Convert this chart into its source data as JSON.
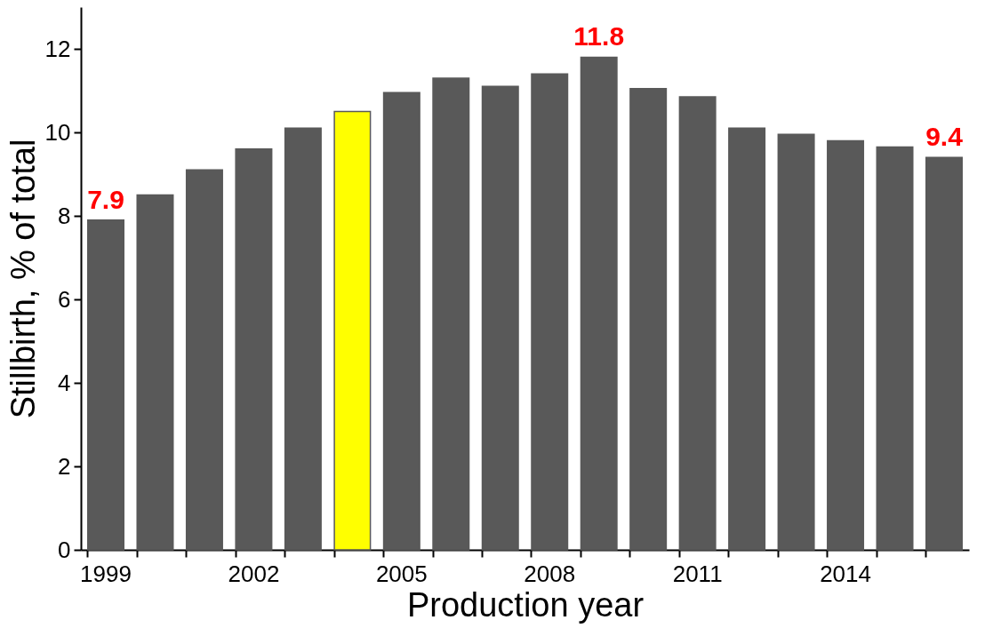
{
  "chart_data": {
    "type": "bar",
    "xlabel": "Production year",
    "ylabel": "Stillbirth, % of total",
    "categories": [
      "1999",
      null,
      null,
      "2002",
      null,
      null,
      "2005",
      null,
      null,
      "2008",
      null,
      null,
      "2011",
      null,
      null,
      "2014",
      null,
      null
    ],
    "values": [
      7.9,
      8.5,
      9.1,
      9.6,
      10.1,
      10.5,
      10.95,
      11.3,
      11.1,
      11.4,
      11.8,
      11.05,
      10.85,
      10.1,
      9.95,
      9.8,
      9.65,
      9.4
    ],
    "colors": [
      "#595959",
      "#595959",
      "#595959",
      "#595959",
      "#595959",
      "#ffff00",
      "#595959",
      "#595959",
      "#595959",
      "#595959",
      "#595959",
      "#595959",
      "#595959",
      "#595959",
      "#595959",
      "#595959",
      "#595959",
      "#595959"
    ],
    "value_labels": [
      "7.9",
      null,
      null,
      null,
      null,
      null,
      null,
      null,
      null,
      null,
      "11.8",
      null,
      null,
      null,
      null,
      null,
      null,
      "9.4"
    ],
    "ylim": [
      0,
      13
    ],
    "yticks": [
      0,
      2,
      4,
      6,
      8,
      10,
      12
    ],
    "grid": false
  }
}
